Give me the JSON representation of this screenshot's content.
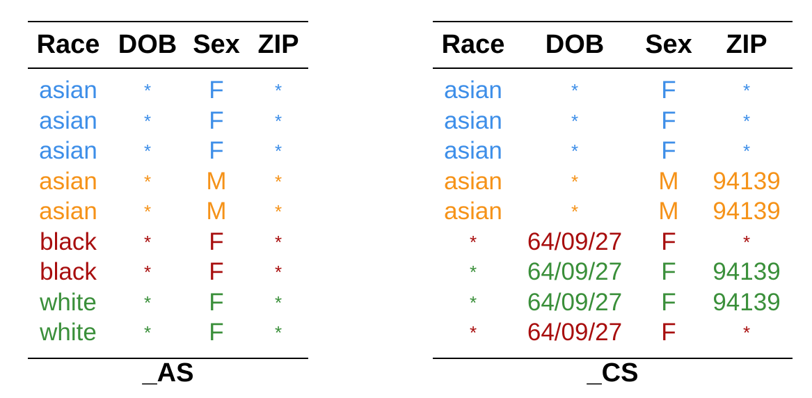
{
  "colors": {
    "blue": "#3d8ee8",
    "orange": "#f59218",
    "red": "#a80e0e",
    "green": "#3a8f3a"
  },
  "tables": [
    {
      "caption": "_AS",
      "headers": [
        "Race",
        "DOB",
        "Sex",
        "ZIP"
      ],
      "rows": [
        {
          "cells": [
            "asian",
            "*",
            "F",
            "*"
          ],
          "color": "blue"
        },
        {
          "cells": [
            "asian",
            "*",
            "F",
            "*"
          ],
          "color": "blue"
        },
        {
          "cells": [
            "asian",
            "*",
            "F",
            "*"
          ],
          "color": "blue"
        },
        {
          "cells": [
            "asian",
            "*",
            "M",
            "*"
          ],
          "color": "orange"
        },
        {
          "cells": [
            "asian",
            "*",
            "M",
            "*"
          ],
          "color": "orange"
        },
        {
          "cells": [
            "black",
            "*",
            "F",
            "*"
          ],
          "color": "red"
        },
        {
          "cells": [
            "black",
            "*",
            "F",
            "*"
          ],
          "color": "red"
        },
        {
          "cells": [
            "white",
            "*",
            "F",
            "*"
          ],
          "color": "green"
        },
        {
          "cells": [
            "white",
            "*",
            "F",
            "*"
          ],
          "color": "green"
        }
      ]
    },
    {
      "caption": "_CS",
      "headers": [
        "Race",
        "DOB",
        "Sex",
        "ZIP"
      ],
      "rows": [
        {
          "cells": [
            "asian",
            "*",
            "F",
            "*"
          ],
          "color": "blue"
        },
        {
          "cells": [
            "asian",
            "*",
            "F",
            "*"
          ],
          "color": "blue"
        },
        {
          "cells": [
            "asian",
            "*",
            "F",
            "*"
          ],
          "color": "blue"
        },
        {
          "cells": [
            "asian",
            "*",
            "M",
            "94139"
          ],
          "color": "orange"
        },
        {
          "cells": [
            "asian",
            "*",
            "M",
            "94139"
          ],
          "color": "orange"
        },
        {
          "cells": [
            "*",
            "64/09/27",
            "F",
            "*"
          ],
          "color": "red"
        },
        {
          "cells": [
            "*",
            "64/09/27",
            "F",
            "94139"
          ],
          "color": "green"
        },
        {
          "cells": [
            "*",
            "64/09/27",
            "F",
            "94139"
          ],
          "color": "green"
        },
        {
          "cells": [
            "*",
            "64/09/27",
            "F",
            "*"
          ],
          "color": "red"
        }
      ]
    }
  ]
}
